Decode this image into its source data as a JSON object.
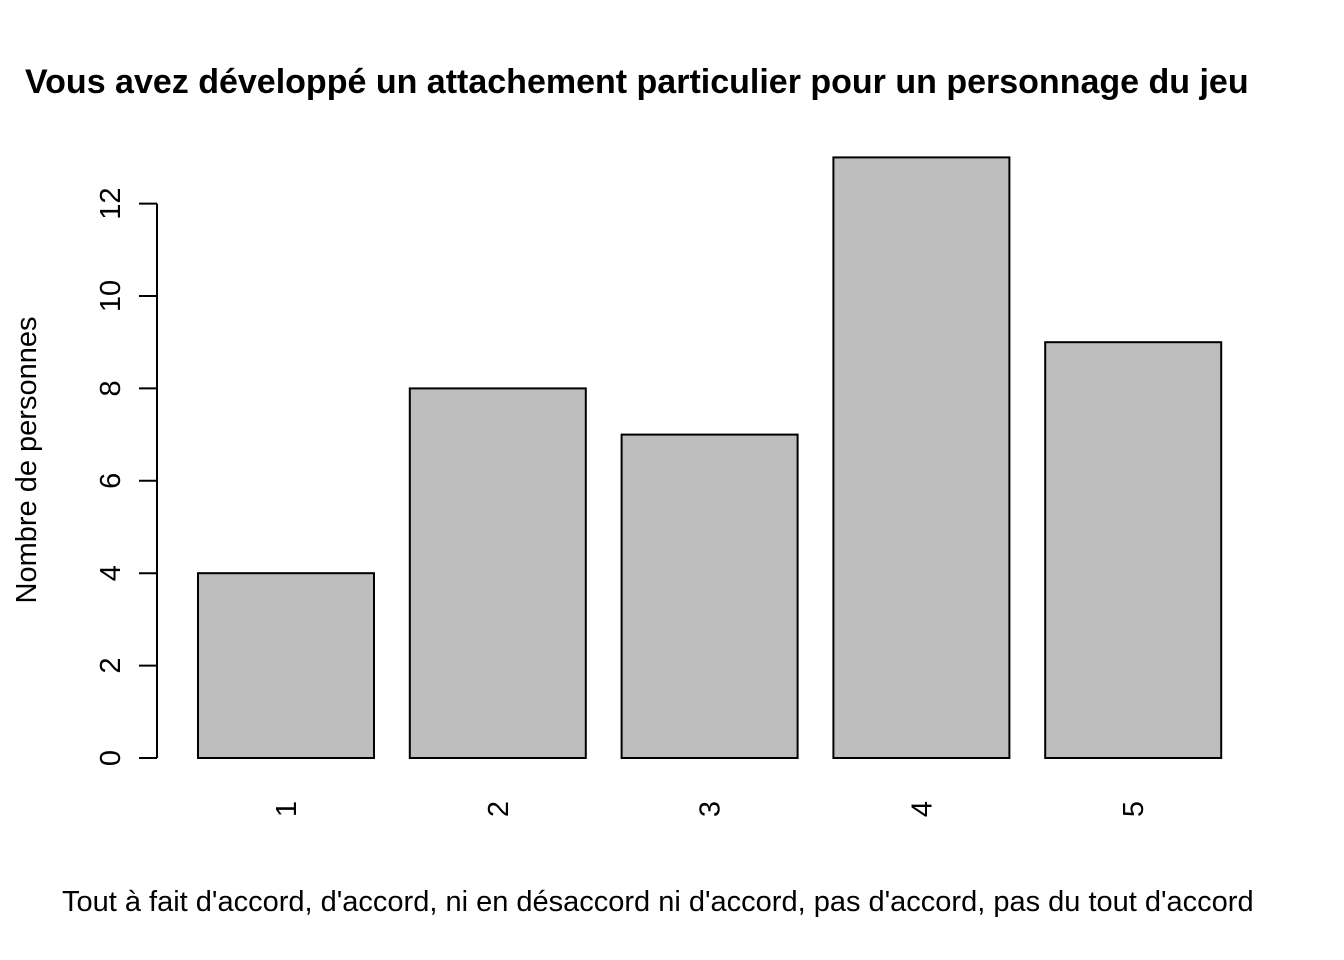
{
  "chart_data": {
    "type": "bar",
    "title": "Vous avez développé un attachement particulier pour un personnage du jeu",
    "xlabel": "Tout à fait d'accord, d'accord, ni en désaccord ni d'accord, pas d'accord, pas du tout d'accord",
    "ylabel": "Nombre de personnes",
    "categories": [
      "1",
      "2",
      "3",
      "4",
      "5"
    ],
    "values": [
      4,
      8,
      7,
      13,
      9
    ],
    "yticks": [
      0,
      2,
      4,
      6,
      8,
      10,
      12
    ],
    "ylim": [
      0,
      13
    ],
    "bar_color": "#bebebe",
    "grid": false,
    "legend": "none"
  }
}
